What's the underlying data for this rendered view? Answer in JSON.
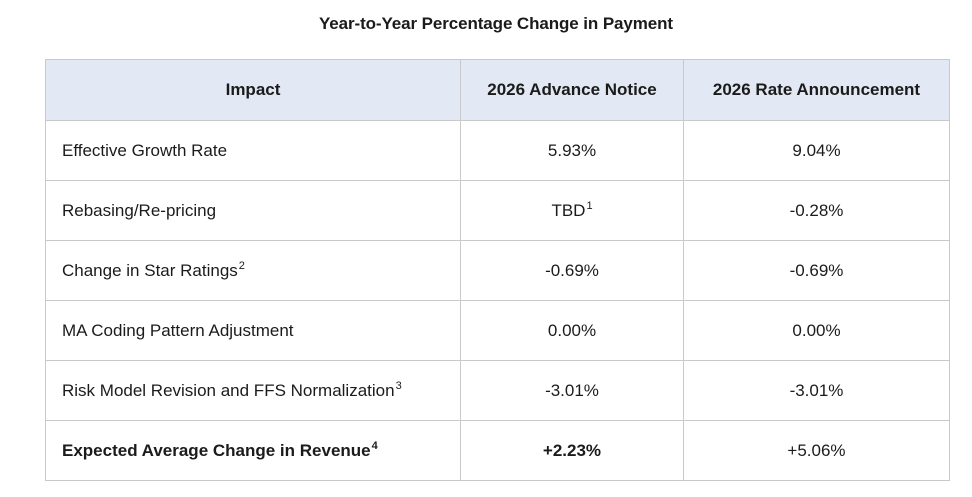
{
  "title": "Year-to-Year Percentage Change in Payment",
  "table": {
    "headers": [
      "Impact",
      "2026 Advance Notice",
      "2026 Rate Announcement"
    ],
    "rows": [
      {
        "label": "Effective Growth Rate",
        "label_sup": "",
        "advance": "5.93%",
        "advance_sup": "",
        "announcement": "9.04%"
      },
      {
        "label": "Rebasing/Re-pricing",
        "label_sup": "",
        "advance": "TBD",
        "advance_sup": "1",
        "announcement": "-0.28%"
      },
      {
        "label": "Change in Star Ratings",
        "label_sup": "2",
        "advance": "-0.69%",
        "advance_sup": "",
        "announcement": "-0.69%"
      },
      {
        "label": "MA Coding Pattern Adjustment",
        "label_sup": "",
        "advance": "0.00%",
        "advance_sup": "",
        "announcement": "0.00%"
      },
      {
        "label": "Risk Model Revision and FFS Normalization",
        "label_sup": "3",
        "advance": "-3.01%",
        "advance_sup": "",
        "announcement": "-3.01%"
      },
      {
        "label": "Expected Average Change in Revenue",
        "label_sup": "4",
        "advance": "+2.23%",
        "advance_sup": "",
        "announcement": "+5.06%"
      }
    ]
  }
}
